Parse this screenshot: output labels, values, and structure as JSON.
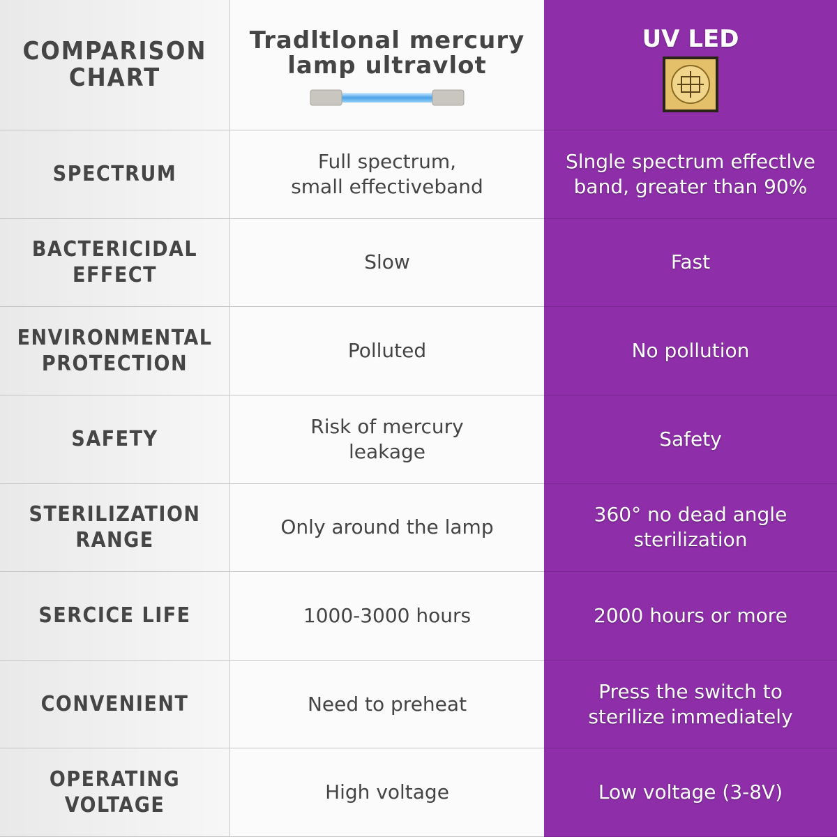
{
  "header": {
    "title": [
      "COMPARISON",
      "CHART"
    ],
    "columns": [
      [
        "Tradltlonal mercury",
        "lamp ultravlot"
      ],
      [
        "UV LED"
      ]
    ]
  },
  "rows": [
    {
      "label": [
        "SPECTRUM"
      ],
      "traditional": [
        "Full spectrum,",
        "small effectiveband"
      ],
      "uv_led": [
        "Slngle spectrum effectlve",
        "band, greater than 90%"
      ]
    },
    {
      "label": [
        "BACTERICIDAL",
        "EFFECT"
      ],
      "traditional": [
        "Slow"
      ],
      "uv_led": [
        "Fast"
      ]
    },
    {
      "label": [
        "ENVIRONMENTAL",
        "PROTECTION"
      ],
      "traditional": [
        "Polluted"
      ],
      "uv_led": [
        "No pollution"
      ]
    },
    {
      "label": [
        "SAFETY"
      ],
      "traditional": [
        "Risk of mercury",
        "leakage"
      ],
      "uv_led": [
        "Safety"
      ]
    },
    {
      "label": [
        "STERILIZATION",
        "RANGE"
      ],
      "traditional": [
        "Only around the lamp"
      ],
      "uv_led": [
        "360° no dead angle",
        "sterilization"
      ]
    },
    {
      "label": [
        "SERCICE LIFE"
      ],
      "traditional": [
        "1000-3000 hours"
      ],
      "uv_led": [
        "2000 hours or more"
      ]
    },
    {
      "label": [
        "CONVENIENT"
      ],
      "traditional": [
        "Need to preheat"
      ],
      "uv_led": [
        "Press the switch to",
        "sterilize immediately"
      ]
    },
    {
      "label": [
        "OPERATING",
        "VOLTAGE"
      ],
      "traditional": [
        "High voltage"
      ],
      "uv_led": [
        "Low voltage (3-8V)"
      ]
    }
  ]
}
